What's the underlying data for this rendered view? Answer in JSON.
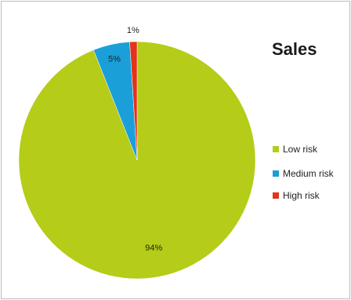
{
  "chart_data": {
    "type": "pie",
    "title": "Sales",
    "series": [
      {
        "name": "Low risk",
        "value": 94,
        "label": "94%",
        "color": "#b5cc18"
      },
      {
        "name": "Medium risk",
        "value": 5,
        "label": "5%",
        "color": "#1a9fd8"
      },
      {
        "name": "High risk",
        "value": 1,
        "label": "1%",
        "color": "#e3341a"
      }
    ],
    "legend_position": "right"
  }
}
